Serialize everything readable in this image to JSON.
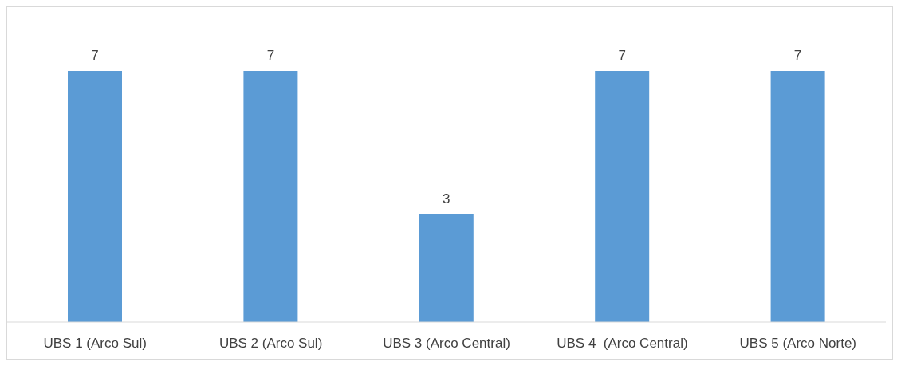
{
  "chart_data": {
    "type": "bar",
    "categories": [
      "UBS 1 (Arco Sul)",
      "UBS 2 (Arco Sul)",
      "UBS 3 (Arco Central)",
      "UBS 4  (Arco Central)",
      "UBS 5 (Arco Norte)"
    ],
    "values": [
      7,
      7,
      3,
      7,
      7
    ],
    "color": "#5b9bd5",
    "data_labels": true,
    "grid": false,
    "legend": false
  }
}
